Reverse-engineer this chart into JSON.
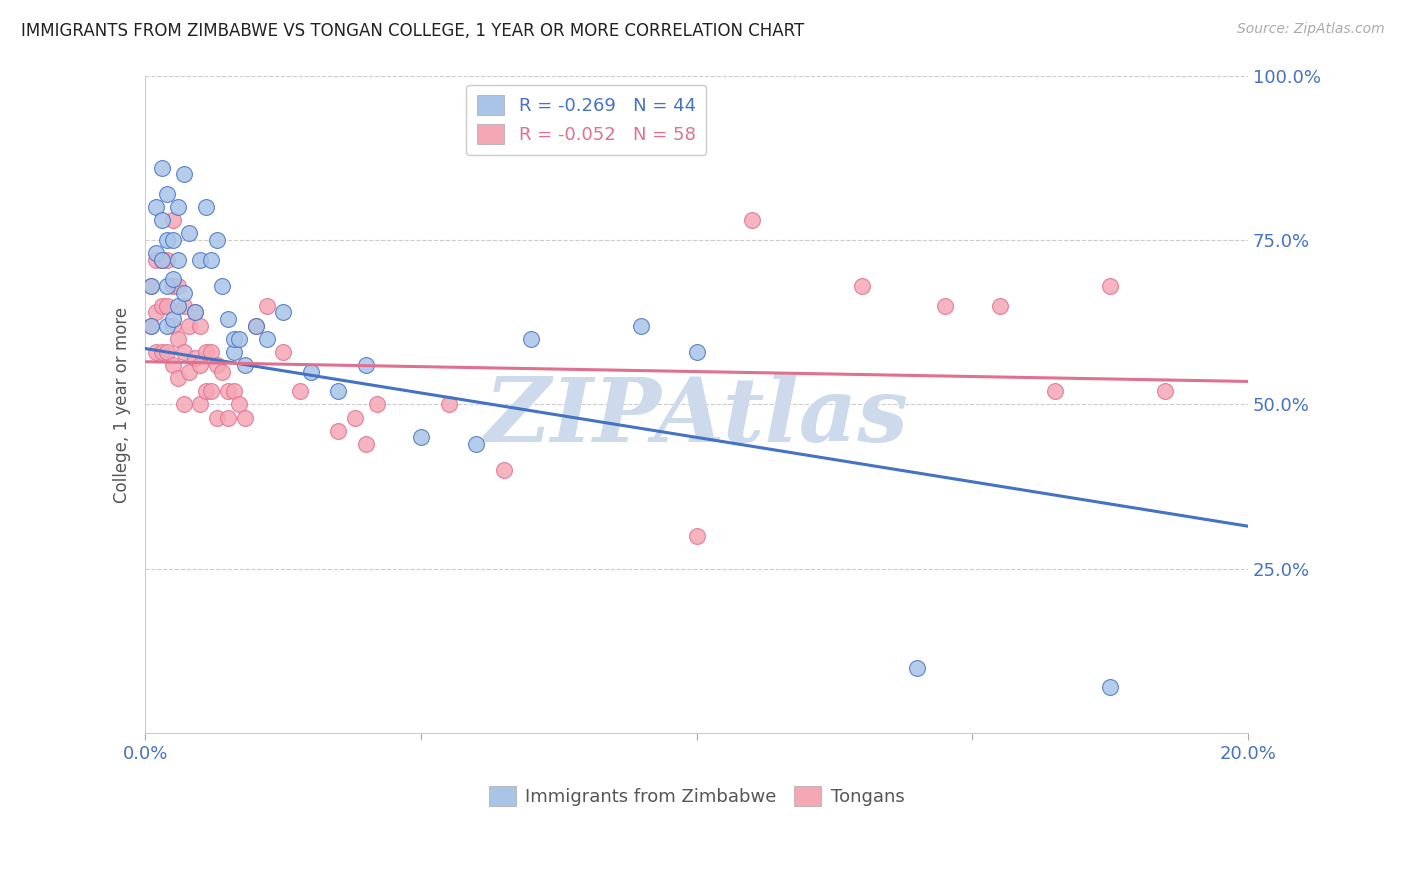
{
  "title": "IMMIGRANTS FROM ZIMBABWE VS TONGAN COLLEGE, 1 YEAR OR MORE CORRELATION CHART",
  "source": "Source: ZipAtlas.com",
  "ylabel": "College, 1 year or more",
  "xmin": 0.0,
  "xmax": 0.2,
  "ymin": 0.0,
  "ymax": 1.0,
  "ytick_labels": [
    "25.0%",
    "50.0%",
    "75.0%",
    "100.0%"
  ],
  "ytick_values": [
    0.25,
    0.5,
    0.75,
    1.0
  ],
  "legend_label1": "Immigrants from Zimbabwe",
  "legend_label2": "Tongans",
  "r1": "-0.269",
  "n1": "44",
  "r2": "-0.052",
  "n2": "58",
  "color1": "#aac4e8",
  "color2": "#f4a7b5",
  "line_color1": "#4472c4",
  "line_color2": "#e07090",
  "watermark": "ZIPAtlas",
  "watermark_color": "#ccdaec",
  "background_color": "#ffffff",
  "blue_x": [
    0.001,
    0.001,
    0.002,
    0.002,
    0.003,
    0.003,
    0.003,
    0.004,
    0.004,
    0.004,
    0.004,
    0.005,
    0.005,
    0.005,
    0.006,
    0.006,
    0.006,
    0.007,
    0.007,
    0.008,
    0.009,
    0.01,
    0.011,
    0.012,
    0.013,
    0.014,
    0.015,
    0.016,
    0.016,
    0.017,
    0.018,
    0.02,
    0.022,
    0.025,
    0.03,
    0.035,
    0.04,
    0.05,
    0.06,
    0.07,
    0.09,
    0.1,
    0.14,
    0.175
  ],
  "blue_y": [
    0.68,
    0.62,
    0.8,
    0.73,
    0.86,
    0.78,
    0.72,
    0.82,
    0.75,
    0.68,
    0.62,
    0.75,
    0.69,
    0.63,
    0.8,
    0.72,
    0.65,
    0.85,
    0.67,
    0.76,
    0.64,
    0.72,
    0.8,
    0.72,
    0.75,
    0.68,
    0.63,
    0.58,
    0.6,
    0.6,
    0.56,
    0.62,
    0.6,
    0.64,
    0.55,
    0.52,
    0.56,
    0.45,
    0.44,
    0.6,
    0.62,
    0.58,
    0.1,
    0.07
  ],
  "pink_x": [
    0.001,
    0.001,
    0.002,
    0.002,
    0.002,
    0.003,
    0.003,
    0.003,
    0.004,
    0.004,
    0.004,
    0.005,
    0.005,
    0.005,
    0.005,
    0.006,
    0.006,
    0.006,
    0.007,
    0.007,
    0.007,
    0.008,
    0.008,
    0.009,
    0.009,
    0.01,
    0.01,
    0.01,
    0.011,
    0.011,
    0.012,
    0.012,
    0.013,
    0.013,
    0.014,
    0.015,
    0.015,
    0.016,
    0.017,
    0.018,
    0.02,
    0.022,
    0.025,
    0.028,
    0.035,
    0.038,
    0.04,
    0.042,
    0.055,
    0.065,
    0.1,
    0.11,
    0.13,
    0.145,
    0.155,
    0.165,
    0.175,
    0.185
  ],
  "pink_y": [
    0.68,
    0.62,
    0.72,
    0.64,
    0.58,
    0.72,
    0.65,
    0.58,
    0.72,
    0.65,
    0.58,
    0.78,
    0.68,
    0.62,
    0.56,
    0.68,
    0.6,
    0.54,
    0.65,
    0.58,
    0.5,
    0.62,
    0.55,
    0.64,
    0.57,
    0.62,
    0.56,
    0.5,
    0.58,
    0.52,
    0.58,
    0.52,
    0.56,
    0.48,
    0.55,
    0.52,
    0.48,
    0.52,
    0.5,
    0.48,
    0.62,
    0.65,
    0.58,
    0.52,
    0.46,
    0.48,
    0.44,
    0.5,
    0.5,
    0.4,
    0.3,
    0.78,
    0.68,
    0.65,
    0.65,
    0.52,
    0.68,
    0.52
  ],
  "blue_trend_x": [
    0.0,
    0.2
  ],
  "blue_trend_y": [
    0.585,
    0.315
  ],
  "pink_trend_x": [
    0.0,
    0.2
  ],
  "pink_trend_y": [
    0.565,
    0.535
  ]
}
